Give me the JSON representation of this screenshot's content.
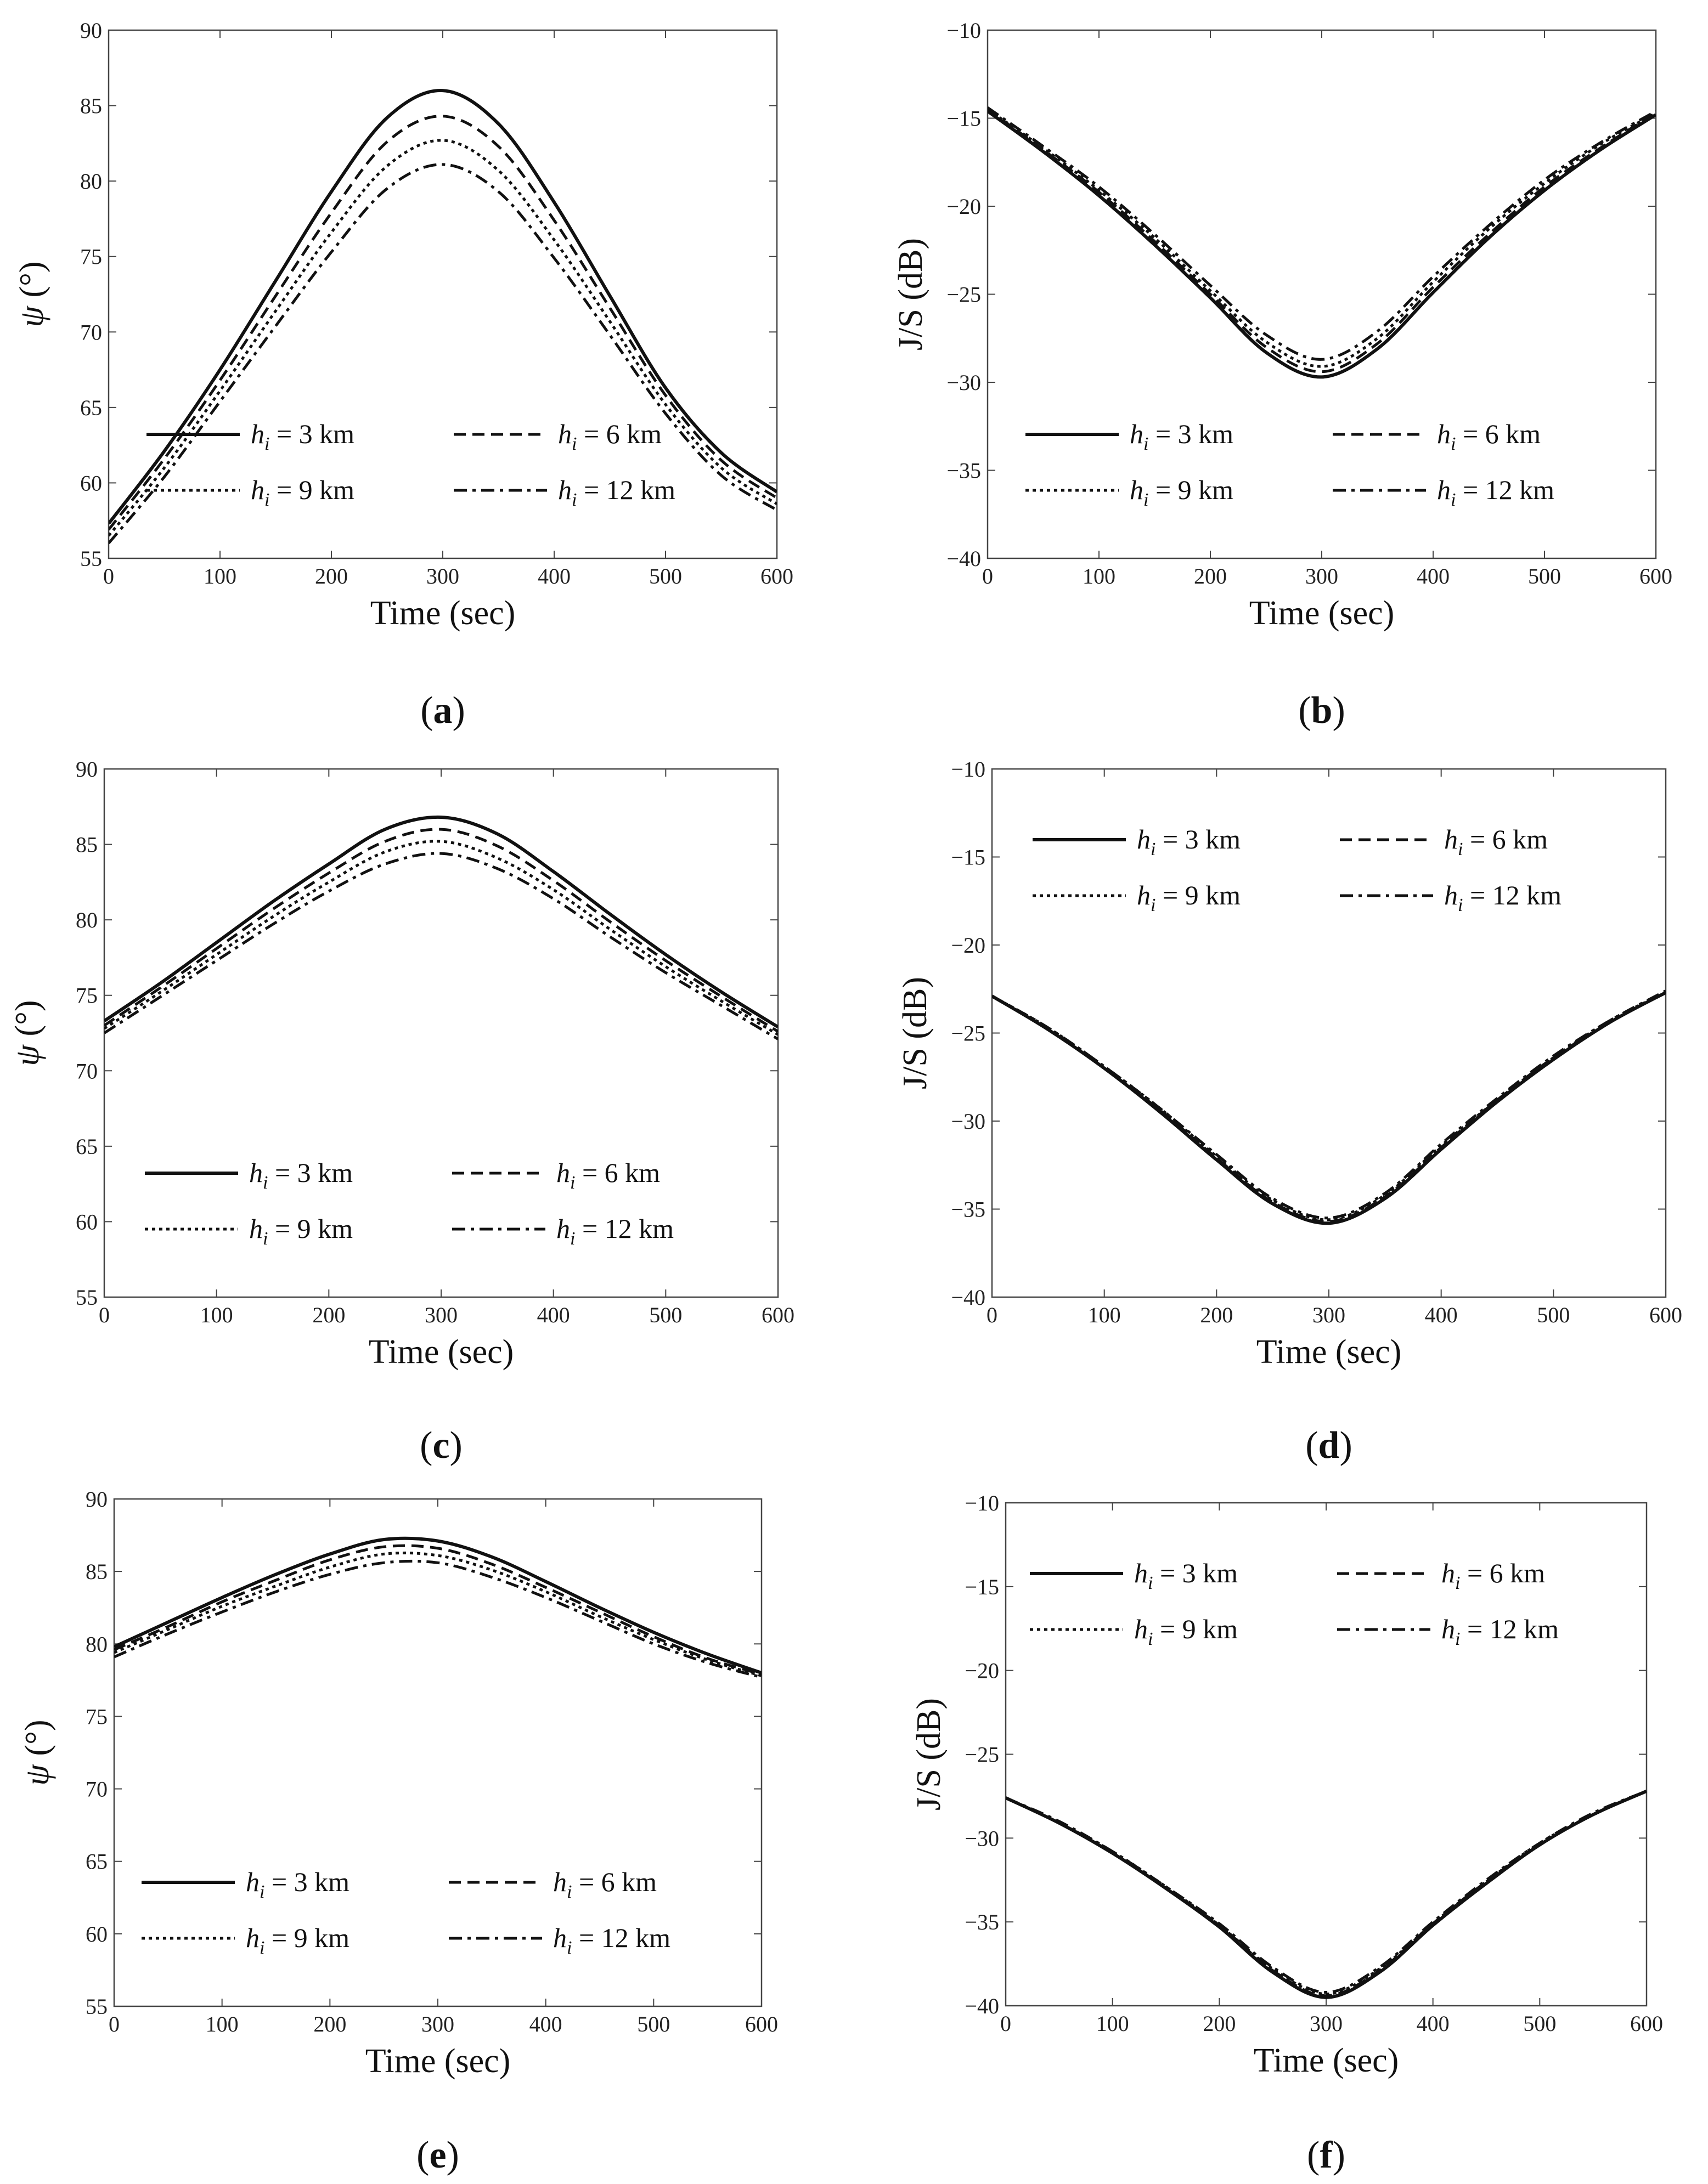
{
  "figure": {
    "panels_note": "six line charts, three rows by two columns"
  },
  "chart_data": [
    {
      "id": "a",
      "type": "line",
      "caption": "a",
      "xlabel": "Time (sec)",
      "ylabel": "ψ (°)",
      "xlim": [
        0,
        600
      ],
      "ylim": [
        55,
        90
      ],
      "xticks": [
        0,
        100,
        200,
        300,
        400,
        500,
        600
      ],
      "yticks": [
        55,
        60,
        65,
        70,
        75,
        80,
        85,
        90
      ],
      "grid": false,
      "legend_position": "lower-center",
      "shape": "peak",
      "x": [
        0,
        50,
        100,
        150,
        200,
        250,
        300,
        350,
        400,
        450,
        500,
        550,
        600
      ],
      "series": [
        {
          "name": "hi = 3 km",
          "var": "h",
          "sub": "i",
          "rest": " = 3 km",
          "style": "solid",
          "peak_x": 300,
          "values": [
            57.3,
            62.1,
            67.5,
            73.4,
            79.3,
            84.2,
            86.0,
            83.8,
            78.6,
            72.4,
            66.3,
            62.0,
            59.4
          ]
        },
        {
          "name": "hi = 6 km",
          "var": "h",
          "sub": "i",
          "rest": " = 6 km",
          "style": "dash",
          "peak_x": 300,
          "values": [
            56.9,
            61.6,
            66.8,
            72.4,
            77.9,
            82.6,
            84.3,
            82.3,
            77.4,
            71.6,
            65.8,
            61.5,
            59.0
          ]
        },
        {
          "name": "hi = 9 km",
          "var": "h",
          "sub": "i",
          "rest": " = 9 km",
          "style": "dot",
          "peak_x": 300,
          "values": [
            56.5,
            61.0,
            66.1,
            71.4,
            76.6,
            81.0,
            82.7,
            80.7,
            76.1,
            70.7,
            65.2,
            61.0,
            58.6
          ]
        },
        {
          "name": "hi = 12 km",
          "var": "h",
          "sub": "i",
          "rest": " = 12 km",
          "style": "dashdot",
          "peak_x": 300,
          "values": [
            56.0,
            60.4,
            65.4,
            70.4,
            75.3,
            79.5,
            81.1,
            79.3,
            74.9,
            69.8,
            64.6,
            60.5,
            58.2
          ]
        }
      ]
    },
    {
      "id": "b",
      "type": "line",
      "caption": "b",
      "xlabel": "Time (sec)",
      "ylabel": "J/S (dB)",
      "xlim": [
        0,
        600
      ],
      "ylim": [
        -40,
        -10
      ],
      "xticks": [
        0,
        100,
        200,
        300,
        400,
        500,
        600
      ],
      "yticks": [
        -40,
        -35,
        -30,
        -25,
        -20,
        -15,
        -10
      ],
      "grid": false,
      "legend_position": "lower-center",
      "shape": "valley",
      "x": [
        0,
        50,
        100,
        150,
        200,
        250,
        300,
        350,
        400,
        450,
        500,
        550,
        600
      ],
      "series": [
        {
          "name": "hi = 3 km",
          "var": "h",
          "sub": "i",
          "rest": " = 3 km",
          "style": "solid",
          "peak_x": 295,
          "values": [
            -14.6,
            -16.9,
            -19.4,
            -22.2,
            -25.2,
            -28.3,
            -29.7,
            -28.1,
            -24.9,
            -21.8,
            -19.1,
            -16.8,
            -14.8
          ]
        },
        {
          "name": "hi = 6 km",
          "var": "h",
          "sub": "i",
          "rest": " = 6 km",
          "style": "dash",
          "peak_x": 295,
          "values": [
            -14.5,
            -16.8,
            -19.2,
            -22.0,
            -25.0,
            -28.0,
            -29.4,
            -27.8,
            -24.6,
            -21.6,
            -18.9,
            -16.7,
            -14.7
          ]
        },
        {
          "name": "hi = 9 km",
          "var": "h",
          "sub": "i",
          "rest": " = 9 km",
          "style": "dot",
          "peak_x": 295,
          "values": [
            -14.5,
            -16.7,
            -19.1,
            -21.8,
            -24.8,
            -27.7,
            -29.1,
            -27.5,
            -24.3,
            -21.3,
            -18.7,
            -16.5,
            -14.7
          ]
        },
        {
          "name": "hi = 12 km",
          "var": "h",
          "sub": "i",
          "rest": " = 12 km",
          "style": "dashdot",
          "peak_x": 295,
          "values": [
            -14.4,
            -16.6,
            -18.9,
            -21.6,
            -24.5,
            -27.3,
            -28.7,
            -27.1,
            -24.0,
            -21.1,
            -18.5,
            -16.4,
            -14.6
          ]
        }
      ]
    },
    {
      "id": "c",
      "type": "line",
      "caption": "c",
      "xlabel": "Time (sec)",
      "ylabel": "ψ (°)",
      "xlim": [
        0,
        600
      ],
      "ylim": [
        55,
        90
      ],
      "xticks": [
        0,
        100,
        200,
        300,
        400,
        500,
        600
      ],
      "yticks": [
        55,
        60,
        65,
        70,
        75,
        80,
        85,
        90
      ],
      "grid": false,
      "legend_position": "lower-center",
      "shape": "peak",
      "x": [
        0,
        50,
        100,
        150,
        200,
        250,
        300,
        350,
        400,
        450,
        500,
        550,
        600
      ],
      "series": [
        {
          "name": "hi = 3 km",
          "var": "h",
          "sub": "i",
          "rest": " = 3 km",
          "style": "solid",
          "peak_x": 285,
          "values": [
            73.3,
            75.8,
            78.5,
            81.2,
            83.7,
            86.0,
            86.8,
            85.7,
            83.2,
            80.4,
            77.7,
            75.2,
            72.9
          ]
        },
        {
          "name": "hi = 6 km",
          "var": "h",
          "sub": "i",
          "rest": " = 6 km",
          "style": "dash",
          "peak_x": 285,
          "values": [
            73.0,
            75.5,
            78.1,
            80.7,
            83.1,
            85.2,
            86.0,
            84.9,
            82.6,
            79.9,
            77.3,
            74.9,
            72.6
          ]
        },
        {
          "name": "hi = 9 km",
          "var": "h",
          "sub": "i",
          "rest": " = 9 km",
          "style": "dot",
          "peak_x": 285,
          "values": [
            72.8,
            75.2,
            77.7,
            80.2,
            82.5,
            84.5,
            85.2,
            84.1,
            82.0,
            79.4,
            76.9,
            74.6,
            72.4
          ]
        },
        {
          "name": "hi = 12 km",
          "var": "h",
          "sub": "i",
          "rest": " = 12 km",
          "style": "dashdot",
          "peak_x": 285,
          "values": [
            72.5,
            74.9,
            77.3,
            79.7,
            81.9,
            83.7,
            84.4,
            83.4,
            81.4,
            78.9,
            76.5,
            74.3,
            72.1
          ]
        }
      ]
    },
    {
      "id": "d",
      "type": "line",
      "caption": "d",
      "xlabel": "Time (sec)",
      "ylabel": "J/S (dB)",
      "xlim": [
        0,
        600
      ],
      "ylim": [
        -40,
        -10
      ],
      "xticks": [
        0,
        100,
        200,
        300,
        400,
        500,
        600
      ],
      "yticks": [
        -40,
        -35,
        -30,
        -25,
        -20,
        -15,
        -10
      ],
      "grid": false,
      "legend_position": "top-center",
      "shape": "valley",
      "x": [
        0,
        50,
        100,
        150,
        200,
        250,
        300,
        350,
        400,
        450,
        500,
        550,
        600
      ],
      "series": [
        {
          "name": "hi = 3 km",
          "var": "h",
          "sub": "i",
          "rest": " = 3 km",
          "style": "solid",
          "peak_x": 295,
          "values": [
            -22.9,
            -24.8,
            -27.0,
            -29.5,
            -32.2,
            -34.7,
            -35.8,
            -34.4,
            -31.6,
            -28.9,
            -26.5,
            -24.4,
            -22.7
          ]
        },
        {
          "name": "hi = 6 km",
          "var": "h",
          "sub": "i",
          "rest": " = 6 km",
          "style": "dash",
          "peak_x": 295,
          "values": [
            -22.9,
            -24.8,
            -27.0,
            -29.4,
            -32.1,
            -34.6,
            -35.7,
            -34.3,
            -31.5,
            -28.8,
            -26.4,
            -24.4,
            -22.7
          ]
        },
        {
          "name": "hi = 9 km",
          "var": "h",
          "sub": "i",
          "rest": " = 9 km",
          "style": "dot",
          "peak_x": 295,
          "values": [
            -22.9,
            -24.7,
            -26.9,
            -29.3,
            -32.0,
            -34.5,
            -35.6,
            -34.2,
            -31.4,
            -28.8,
            -26.4,
            -24.3,
            -22.7
          ]
        },
        {
          "name": "hi = 12 km",
          "var": "h",
          "sub": "i",
          "rest": " = 12 km",
          "style": "dashdot",
          "peak_x": 295,
          "values": [
            -22.9,
            -24.7,
            -26.9,
            -29.3,
            -31.9,
            -34.4,
            -35.5,
            -34.1,
            -31.3,
            -28.7,
            -26.3,
            -24.3,
            -22.6
          ]
        }
      ]
    },
    {
      "id": "e",
      "type": "line",
      "caption": "e",
      "xlabel": "Time (sec)",
      "ylabel": "ψ (°)",
      "xlim": [
        0,
        600
      ],
      "ylim": [
        55,
        90
      ],
      "xticks": [
        0,
        100,
        200,
        300,
        400,
        500,
        600
      ],
      "yticks": [
        55,
        60,
        65,
        70,
        75,
        80,
        85,
        90
      ],
      "grid": false,
      "legend_position": "lower-center",
      "shape": "peak",
      "x": [
        0,
        50,
        100,
        150,
        200,
        250,
        300,
        350,
        400,
        450,
        500,
        550,
        600
      ],
      "series": [
        {
          "name": "hi = 3 km",
          "var": "h",
          "sub": "i",
          "rest": " = 3 km",
          "style": "solid",
          "peak_x": 270,
          "values": [
            79.8,
            81.5,
            83.2,
            84.8,
            86.2,
            87.2,
            87.1,
            86.0,
            84.3,
            82.5,
            80.8,
            79.3,
            78.0
          ]
        },
        {
          "name": "hi = 6 km",
          "var": "h",
          "sub": "i",
          "rest": " = 6 km",
          "style": "dash",
          "peak_x": 270,
          "values": [
            79.6,
            81.2,
            82.9,
            84.4,
            85.8,
            86.7,
            86.6,
            85.5,
            83.9,
            82.2,
            80.5,
            79.0,
            77.9
          ]
        },
        {
          "name": "hi = 9 km",
          "var": "h",
          "sub": "i",
          "rest": " = 9 km",
          "style": "dot",
          "peak_x": 270,
          "values": [
            79.4,
            81.0,
            82.6,
            84.0,
            85.3,
            86.2,
            86.1,
            85.1,
            83.6,
            81.9,
            80.3,
            78.9,
            77.8
          ]
        },
        {
          "name": "hi = 12 km",
          "var": "h",
          "sub": "i",
          "rest": " = 12 km",
          "style": "dashdot",
          "peak_x": 270,
          "values": [
            79.1,
            80.7,
            82.2,
            83.6,
            84.8,
            85.6,
            85.6,
            84.6,
            83.2,
            81.6,
            80.0,
            78.7,
            77.7
          ]
        }
      ]
    },
    {
      "id": "f",
      "type": "line",
      "caption": "f",
      "xlabel": "Time (sec)",
      "ylabel": "J/S (dB)",
      "xlim": [
        0,
        600
      ],
      "ylim": [
        -40,
        -10
      ],
      "xticks": [
        0,
        100,
        200,
        300,
        400,
        500,
        600
      ],
      "yticks": [
        -40,
        -35,
        -30,
        -25,
        -20,
        -15,
        -10
      ],
      "grid": false,
      "legend_position": "top-center",
      "shape": "valley",
      "x": [
        0,
        50,
        100,
        150,
        200,
        250,
        300,
        350,
        400,
        450,
        500,
        550,
        600
      ],
      "series": [
        {
          "name": "hi = 3 km",
          "var": "h",
          "sub": "i",
          "rest": " = 3 km",
          "style": "solid",
          "peak_x": 290,
          "values": [
            -27.6,
            -29.1,
            -30.9,
            -33.0,
            -35.3,
            -38.0,
            -39.5,
            -38.0,
            -35.2,
            -32.7,
            -30.4,
            -28.6,
            -27.2
          ]
        },
        {
          "name": "hi = 6 km",
          "var": "h",
          "sub": "i",
          "rest": " = 6 km",
          "style": "dash",
          "peak_x": 290,
          "values": [
            -27.6,
            -29.1,
            -30.9,
            -33.0,
            -35.2,
            -37.9,
            -39.4,
            -37.9,
            -35.1,
            -32.6,
            -30.4,
            -28.6,
            -27.2
          ]
        },
        {
          "name": "hi = 9 km",
          "var": "h",
          "sub": "i",
          "rest": " = 9 km",
          "style": "dot",
          "peak_x": 290,
          "values": [
            -27.6,
            -29.1,
            -30.8,
            -32.9,
            -35.2,
            -37.8,
            -39.3,
            -37.8,
            -35.1,
            -32.6,
            -30.3,
            -28.6,
            -27.2
          ]
        },
        {
          "name": "hi = 12 km",
          "var": "h",
          "sub": "i",
          "rest": " = 12 km",
          "style": "dashdot",
          "peak_x": 290,
          "values": [
            -27.6,
            -29.0,
            -30.8,
            -32.9,
            -35.1,
            -37.7,
            -39.2,
            -37.7,
            -35.0,
            -32.5,
            -30.3,
            -28.5,
            -27.2
          ]
        }
      ]
    }
  ]
}
